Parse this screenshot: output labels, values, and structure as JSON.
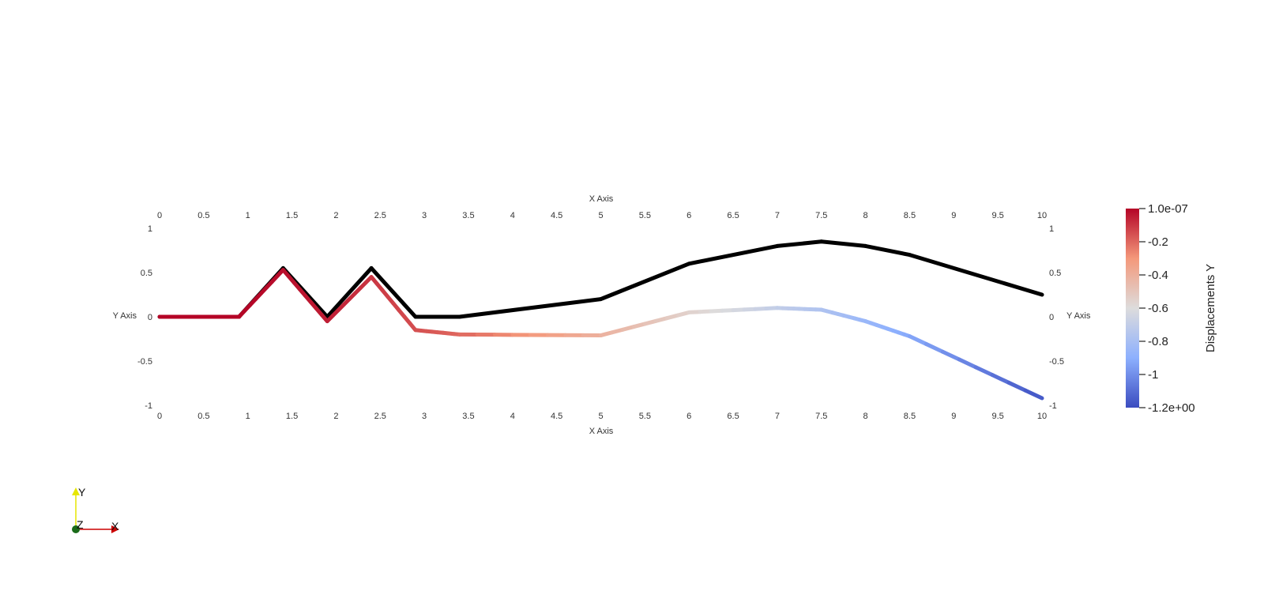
{
  "chart_data": {
    "type": "line",
    "x_axis": {
      "label": "X Axis",
      "range": [
        0,
        10
      ],
      "ticks": [
        "0",
        "0.5",
        "1",
        "1.5",
        "2",
        "2.5",
        "3",
        "3.5",
        "4",
        "4.5",
        "5",
        "5.5",
        "6",
        "6.5",
        "7",
        "7.5",
        "8",
        "8.5",
        "9",
        "9.5",
        "10"
      ]
    },
    "y_axis": {
      "label": "Y Axis",
      "range": [
        -1,
        1
      ],
      "ticks": [
        "-1",
        "-0.5",
        "0",
        "0.5",
        "1"
      ]
    },
    "series": [
      {
        "role": "undeformed",
        "color": "#000000",
        "points": [
          [
            0,
            0
          ],
          [
            0.9,
            0
          ],
          [
            1.4,
            0.55
          ],
          [
            1.9,
            0
          ],
          [
            2.4,
            0.55
          ],
          [
            2.9,
            0
          ],
          [
            3.4,
            0
          ],
          [
            5,
            0.2
          ],
          [
            6,
            0.6
          ],
          [
            7,
            0.8
          ],
          [
            7.5,
            0.85
          ],
          [
            8,
            0.8
          ],
          [
            8.5,
            0.7
          ],
          [
            10,
            0.25
          ]
        ]
      },
      {
        "role": "deformed",
        "colored_by": "Displacements Y",
        "points": [
          {
            "x": 0,
            "y": 0,
            "d": 0
          },
          {
            "x": 0.9,
            "y": 0,
            "d": 0
          },
          {
            "x": 1.4,
            "y": 0.53,
            "d": -0.02
          },
          {
            "x": 1.9,
            "y": -0.05,
            "d": -0.05
          },
          {
            "x": 2.4,
            "y": 0.45,
            "d": -0.1
          },
          {
            "x": 2.9,
            "y": -0.15,
            "d": -0.15
          },
          {
            "x": 3.4,
            "y": -0.2,
            "d": -0.2
          },
          {
            "x": 5,
            "y": -0.21,
            "d": -0.41
          },
          {
            "x": 6,
            "y": 0.05,
            "d": -0.55
          },
          {
            "x": 7,
            "y": 0.1,
            "d": -0.7
          },
          {
            "x": 7.5,
            "y": 0.08,
            "d": -0.77
          },
          {
            "x": 8,
            "y": -0.05,
            "d": -0.85
          },
          {
            "x": 8.5,
            "y": -0.22,
            "d": -0.92
          },
          {
            "x": 10,
            "y": -0.92,
            "d": -1.17
          }
        ]
      }
    ],
    "colorbar": {
      "title": "Displacements Y",
      "range": [
        -1.2,
        0
      ],
      "tick_labels": [
        "1.0e-07",
        "-0.2",
        "-0.4",
        "-0.6",
        "-0.8",
        "-1",
        "-1.2e+00"
      ],
      "tick_values": [
        1e-07,
        -0.2,
        -0.4,
        -0.6,
        -0.8,
        -1,
        -1.2
      ],
      "colors": [
        "#b40426",
        "#f4987a",
        "#dddcdc",
        "#8db0fe",
        "#3b4cc0"
      ]
    },
    "orientation_axes": {
      "x": "X",
      "y": "Y",
      "z": "Z"
    },
    "grid": false,
    "legend": "right"
  }
}
